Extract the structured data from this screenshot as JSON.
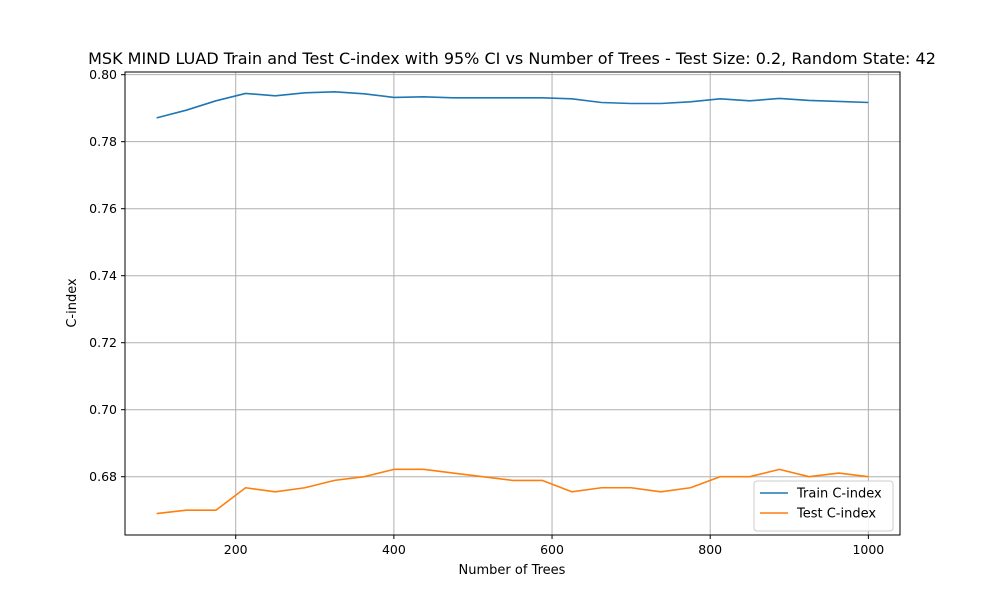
{
  "chart_data": {
    "type": "line",
    "title": "MSK MIND LUAD Train and Test C-index with 95% CI vs Number of Trees - Test Size: 0.2, Random State: 42",
    "xlabel": "Number of Trees",
    "ylabel": "C-index",
    "xlim": [
      60,
      1040
    ],
    "ylim": [
      0.6626,
      0.8008
    ],
    "xticks": [
      200,
      400,
      600,
      800,
      1000
    ],
    "yticks": [
      0.68,
      0.7,
      0.72,
      0.74,
      0.76,
      0.78,
      0.8
    ],
    "xtick_labels": [
      "200",
      "400",
      "600",
      "800",
      "1000"
    ],
    "ytick_labels": [
      "0.68",
      "0.70",
      "0.72",
      "0.74",
      "0.76",
      "0.78",
      "0.80"
    ],
    "grid": true,
    "legend_position": "bottom-right",
    "x": [
      100,
      137.5,
      175,
      212.5,
      250,
      287.5,
      325,
      362.5,
      400,
      437.5,
      475,
      512.5,
      550,
      587.5,
      625,
      662.5,
      700,
      737.5,
      775,
      812.5,
      850,
      887.5,
      925,
      962.5,
      1000
    ],
    "series": [
      {
        "name": "Train C-index",
        "color": "#1f77b4",
        "values": [
          0.7871,
          0.7894,
          0.7922,
          0.7944,
          0.7937,
          0.7946,
          0.7949,
          0.7943,
          0.7932,
          0.7934,
          0.7931,
          0.7931,
          0.7931,
          0.7931,
          0.7928,
          0.7917,
          0.7914,
          0.7914,
          0.7919,
          0.7928,
          0.7922,
          0.7929,
          0.7923,
          0.792,
          0.7917
        ]
      },
      {
        "name": "Test C-index",
        "color": "#ff7f0e",
        "values": [
          0.669,
          0.67,
          0.67,
          0.6767,
          0.6755,
          0.6767,
          0.6789,
          0.68,
          0.6822,
          0.6822,
          0.6811,
          0.68,
          0.6789,
          0.6789,
          0.6755,
          0.6767,
          0.6767,
          0.6755,
          0.6767,
          0.68,
          0.68,
          0.6822,
          0.68,
          0.6811,
          0.68
        ]
      }
    ]
  }
}
